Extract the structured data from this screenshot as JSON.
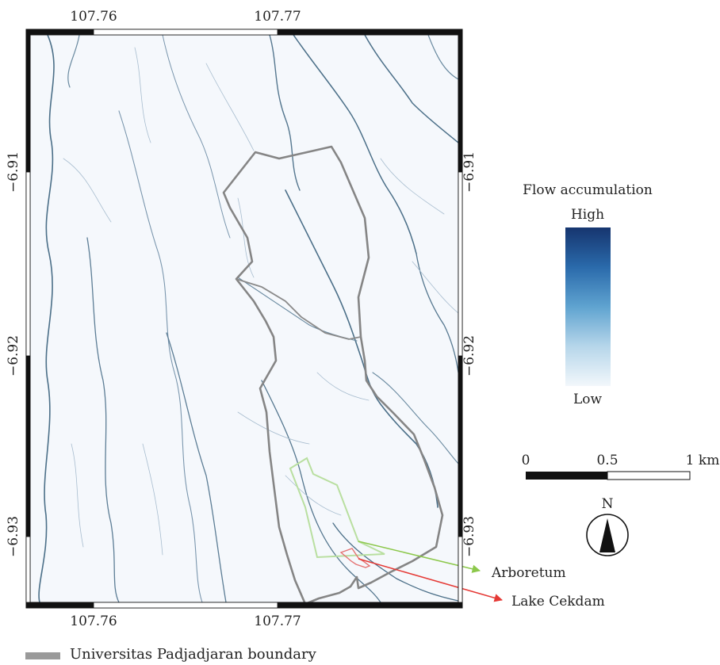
{
  "map": {
    "top_ticks": [
      "107.76",
      "107.77"
    ],
    "bottom_ticks": [
      "107.76",
      "107.77"
    ],
    "left_ticks": [
      "−6.91",
      "−6.92",
      "−6.93"
    ],
    "right_ticks": [
      "−6.91",
      "−6.92",
      "−6.93"
    ]
  },
  "flow_legend": {
    "title": "Flow accumulation",
    "high": "High",
    "low": "Low",
    "colors": [
      "#16356f",
      "#2a6aab",
      "#5fa3d0",
      "#b6d6ea",
      "#f2f7fb"
    ]
  },
  "scale_bar": {
    "labels": [
      "0",
      "0.5",
      "1 km"
    ]
  },
  "north_arrow": {
    "label": "N",
    "icon": "north-arrow-icon"
  },
  "annotations": {
    "arboretum": {
      "label": "Arboretum",
      "color": "#8cc84b"
    },
    "lake": {
      "label": "Lake Cekdam",
      "color": "#e53935"
    }
  },
  "legend": {
    "boundary_label": "Universitas Padjadjaran boundary",
    "boundary_color": "#9a9a9a"
  }
}
